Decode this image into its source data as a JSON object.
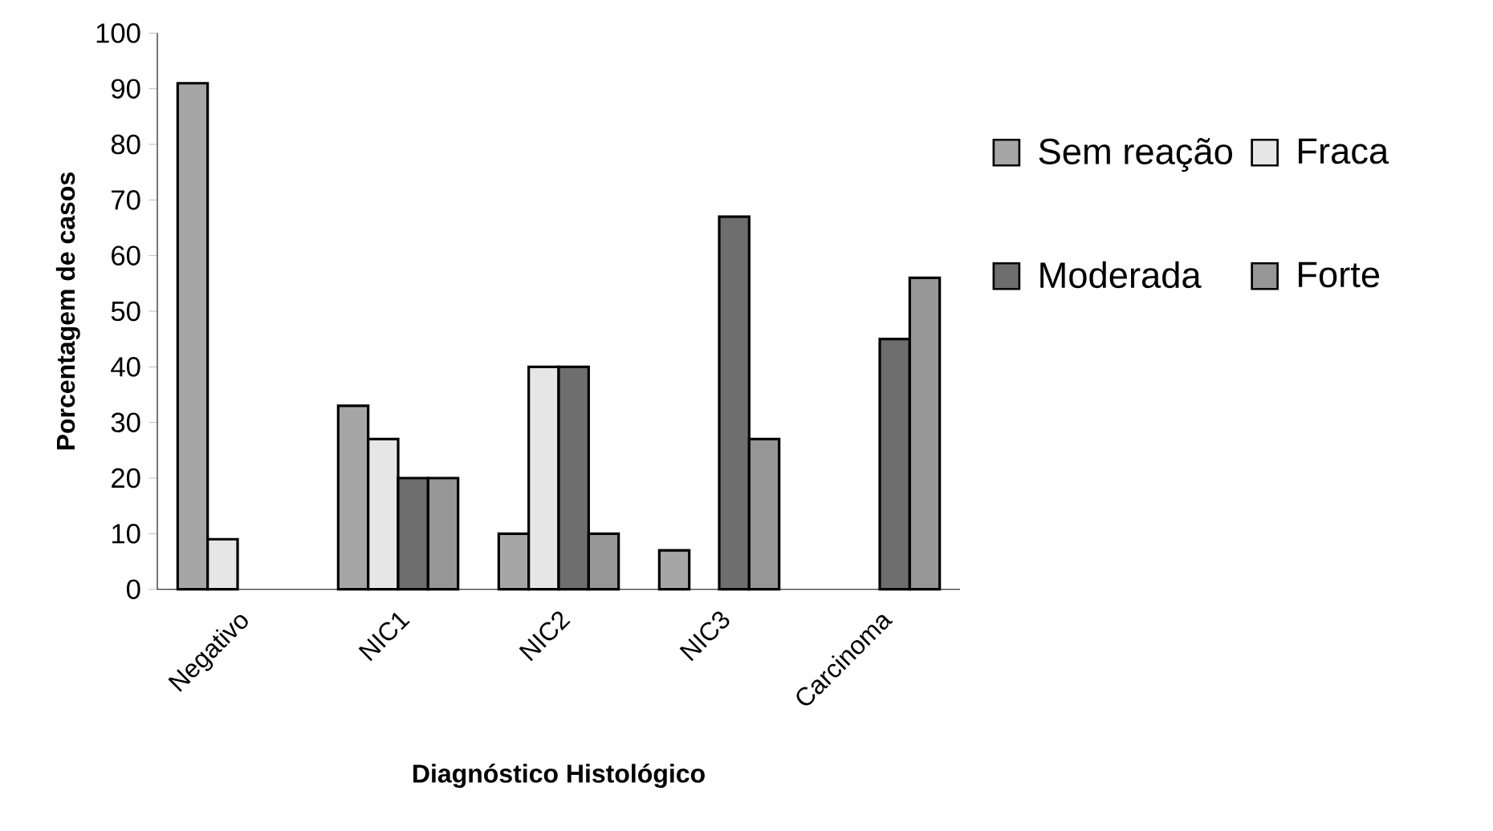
{
  "chart_data": {
    "type": "bar",
    "xlabel": "Diagnóstico Histológico",
    "ylabel": "Porcentagem de casos",
    "categories": [
      "Negativo",
      "NIC1",
      "NIC2",
      "NIC3",
      "Carcinoma"
    ],
    "series": [
      {
        "name": "Sem reação",
        "color": "#a6a6a6",
        "values": [
          91,
          33,
          10,
          7,
          null
        ]
      },
      {
        "name": "Fraca",
        "color": "#e6e6e6",
        "values": [
          9,
          27,
          40,
          null,
          null
        ]
      },
      {
        "name": "Moderada",
        "color": "#6e6e6e",
        "values": [
          null,
          20,
          40,
          67,
          45
        ]
      },
      {
        "name": "Forte",
        "color": "#969696",
        "values": [
          null,
          20,
          10,
          27,
          56
        ]
      }
    ],
    "ylim": [
      0,
      100
    ],
    "yticks": [
      0,
      10,
      20,
      30,
      40,
      50,
      60,
      70,
      80,
      90,
      100
    ],
    "legend": "right",
    "grid": false
  }
}
